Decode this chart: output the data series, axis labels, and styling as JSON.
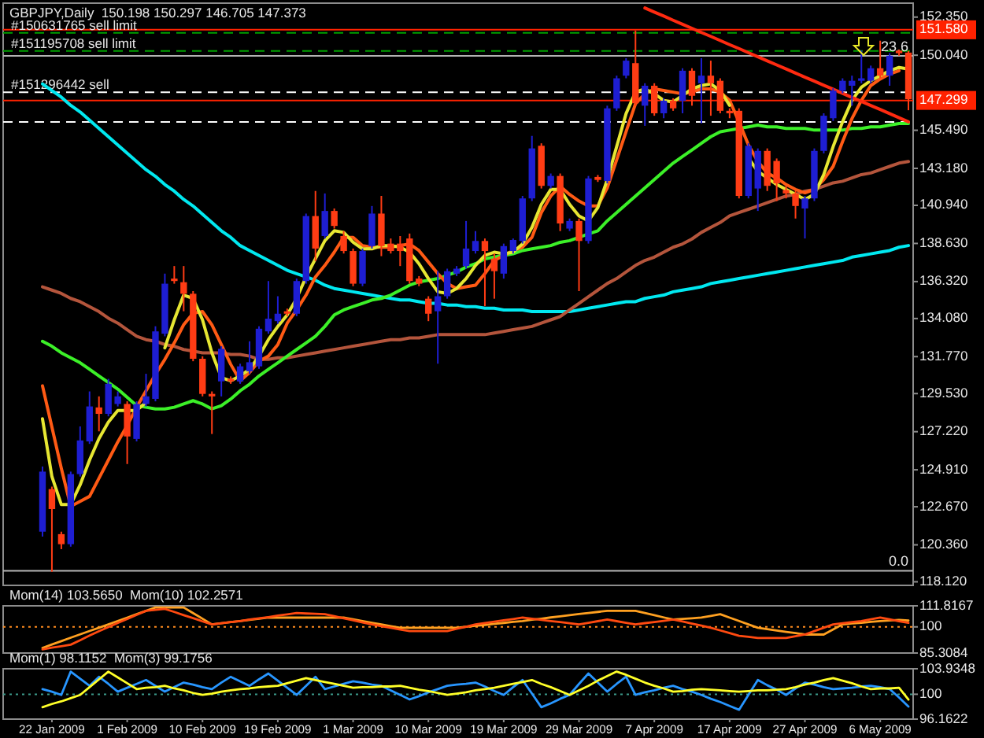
{
  "chart_data": [
    {
      "type": "candlestick",
      "title": "GBPJPY,Daily  150.198 150.297 146.705 147.373",
      "tick_labels": "y",
      "categories": [
        null,
        null,
        null,
        null,
        null,
        null,
        null,
        null,
        null,
        null,
        null,
        null,
        null,
        null,
        null,
        null,
        null,
        null,
        null,
        null,
        null,
        null,
        null,
        null,
        null,
        null,
        null,
        null,
        null,
        null,
        null,
        null,
        null,
        null,
        null,
        null,
        null,
        null,
        null,
        null,
        null,
        null,
        null,
        null,
        null,
        null,
        null,
        null,
        null,
        null,
        null,
        null,
        null,
        null,
        null,
        null,
        null,
        null,
        null,
        null,
        null,
        null,
        null,
        null,
        null,
        null,
        null,
        null,
        null,
        null,
        null,
        null,
        null,
        null,
        null,
        null,
        null,
        null,
        null,
        null,
        null,
        null,
        null,
        null,
        null,
        null,
        null,
        null,
        null,
        null,
        null,
        null,
        null
      ],
      "ohlc": [
        [
          121.16,
          125.11,
          120.86,
          124.8
        ],
        [
          123.74,
          123.89,
          118.73,
          122.53
        ],
        [
          121.01,
          121.16,
          120.1,
          120.4
        ],
        [
          120.4,
          124.8,
          120.25,
          124.65
        ],
        [
          124.65,
          127.54,
          124.5,
          126.69
        ],
        [
          126.63,
          129.66,
          126.48,
          128.75
        ],
        [
          128.69,
          129.36,
          127.24,
          128.3
        ],
        [
          128.3,
          130.42,
          128.15,
          130.12
        ],
        [
          128.9,
          129.66,
          128.75,
          129.36
        ],
        [
          128.9,
          129.06,
          125.26,
          126.93
        ],
        [
          126.78,
          129.06,
          126.63,
          128.9
        ],
        [
          128.9,
          130.73,
          128.75,
          129.36
        ],
        [
          129.21,
          133.61,
          129.06,
          133.3
        ],
        [
          133.16,
          136.8,
          133.0,
          136.19
        ],
        [
          136.5,
          137.26,
          136.19,
          136.35
        ],
        [
          136.28,
          137.26,
          134.52,
          135.58
        ],
        [
          135.58,
          135.74,
          131.49,
          131.64
        ],
        [
          131.64,
          131.79,
          129.36,
          129.51
        ],
        [
          129.51,
          129.66,
          127.08,
          129.36
        ],
        [
          130.27,
          132.4,
          129.36,
          132.24
        ],
        [
          130.42,
          130.57,
          130.12,
          130.27
        ],
        [
          130.27,
          131.34,
          130.12,
          131.18
        ],
        [
          130.88,
          132.7,
          130.73,
          131.43
        ],
        [
          131.18,
          133.61,
          131.03,
          133.46
        ],
        [
          133.3,
          136.35,
          133.16,
          134.07
        ],
        [
          133.92,
          135.43,
          133.76,
          134.37
        ],
        [
          134.52,
          134.68,
          134.22,
          134.37
        ],
        [
          134.37,
          136.5,
          134.22,
          136.35
        ],
        [
          136.35,
          140.44,
          136.19,
          140.29
        ],
        [
          140.29,
          141.81,
          137.56,
          138.32
        ],
        [
          139.08,
          141.66,
          138.93,
          140.6
        ],
        [
          140.6,
          140.75,
          139.53,
          139.69
        ],
        [
          139.08,
          139.38,
          138.02,
          138.17
        ],
        [
          138.17,
          138.32,
          136.04,
          136.19
        ],
        [
          136.19,
          138.32,
          136.04,
          138.17
        ],
        [
          138.47,
          140.9,
          138.32,
          140.44
        ],
        [
          140.44,
          141.51,
          137.86,
          138.47
        ],
        [
          138.62,
          138.93,
          138.02,
          138.17
        ],
        [
          138.62,
          139.08,
          137.26,
          138.17
        ],
        [
          138.93,
          139.23,
          136.19,
          136.35
        ],
        [
          136.5,
          136.65,
          136.04,
          136.19
        ],
        [
          135.28,
          135.43,
          133.92,
          134.37
        ],
        [
          134.52,
          136.95,
          131.34,
          135.43
        ],
        [
          135.43,
          137.1,
          135.28,
          136.95
        ],
        [
          136.8,
          137.26,
          136.65,
          137.1
        ],
        [
          137.26,
          139.99,
          137.1,
          138.32
        ],
        [
          138.17,
          139.38,
          138.02,
          138.78
        ],
        [
          138.78,
          138.93,
          134.83,
          138.17
        ],
        [
          137.71,
          138.02,
          135.28,
          136.95
        ],
        [
          136.8,
          138.62,
          136.5,
          138.47
        ],
        [
          138.17,
          138.93,
          138.02,
          138.84
        ],
        [
          138.78,
          141.51,
          138.62,
          141.36
        ],
        [
          141.36,
          145.15,
          141.2,
          144.39
        ],
        [
          144.55,
          144.7,
          141.96,
          142.12
        ],
        [
          142.12,
          142.87,
          141.96,
          142.72
        ],
        [
          142.72,
          142.87,
          139.38,
          139.84
        ],
        [
          139.53,
          140.14,
          139.38,
          139.99
        ],
        [
          139.99,
          140.14,
          135.74,
          138.78
        ],
        [
          138.78,
          142.72,
          138.62,
          142.57
        ],
        [
          142.66,
          142.78,
          142.36,
          142.48
        ],
        [
          142.42,
          146.98,
          142.27,
          146.82
        ],
        [
          146.82,
          148.8,
          146.67,
          148.64
        ],
        [
          148.8,
          149.86,
          148.64,
          149.71
        ],
        [
          149.56,
          151.53,
          146.98,
          147.13
        ],
        [
          146.98,
          148.34,
          145.76,
          148.19
        ],
        [
          148.19,
          148.34,
          146.37,
          146.52
        ],
        [
          146.52,
          147.43,
          146.22,
          147.28
        ],
        [
          147.28,
          147.43,
          146.67,
          146.82
        ],
        [
          147.28,
          149.25,
          146.52,
          149.1
        ],
        [
          149.1,
          149.25,
          146.98,
          147.58
        ],
        [
          148.34,
          149.86,
          145.91,
          148.8
        ],
        [
          148.8,
          149.71,
          146.37,
          148.34
        ],
        [
          148.49,
          148.64,
          146.52,
          146.67
        ],
        [
          146.67,
          146.82,
          146.22,
          146.52
        ],
        [
          146.67,
          146.82,
          141.36,
          141.51
        ],
        [
          141.51,
          144.7,
          141.36,
          144.55
        ],
        [
          141.96,
          144.39,
          140.6,
          144.24
        ],
        [
          144.24,
          144.39,
          141.81,
          142.12
        ],
        [
          143.63,
          143.78,
          141.2,
          142.27
        ],
        [
          141.87,
          142.12,
          141.36,
          141.66
        ],
        [
          141.66,
          141.81,
          140.14,
          140.9
        ],
        [
          140.75,
          141.51,
          138.93,
          141.36
        ],
        [
          141.36,
          144.39,
          141.2,
          144.24
        ],
        [
          144.24,
          146.52,
          144.09,
          146.37
        ],
        [
          146.22,
          148.04,
          146.06,
          147.89
        ],
        [
          147.89,
          148.64,
          147.73,
          148.49
        ],
        [
          148.19,
          148.8,
          146.98,
          148.49
        ],
        [
          148.49,
          150.32,
          148.34,
          148.64
        ],
        [
          148.49,
          149.41,
          148.34,
          149.25
        ],
        [
          149.25,
          150.92,
          148.64,
          148.8
        ],
        [
          148.8,
          150.16,
          148.19,
          150.01
        ],
        [
          150.32,
          150.38,
          150.01,
          150.16
        ],
        [
          150.198,
          150.297,
          146.705,
          147.373
        ]
      ],
      "colors": [
        "#1e1ed2",
        "#ff3c14",
        "#ff3c14",
        "#1e1ed2",
        "#1e1ed2",
        "#1e1ed2",
        "#ff3c14",
        "#1e1ed2",
        "#1e1ed2",
        "#ff3c14",
        "#1e1ed2",
        "#1e1ed2",
        "#1e1ed2",
        "#1e1ed2",
        "#ff3c14",
        "#ff3c14",
        "#ff3c14",
        "#ff3c14",
        "#ff3c14",
        "#1e1ed2",
        "#ff3c14",
        "#1e1ed2",
        "#1e1ed2",
        "#1e1ed2",
        "#1e1ed2",
        "#1e1ed2",
        "#ff3c14",
        "#1e1ed2",
        "#1e1ed2",
        "#ff3c14",
        "#1e1ed2",
        "#ff3c14",
        "#ff3c14",
        "#ff3c14",
        "#1e1ed2",
        "#1e1ed2",
        "#ff3c14",
        "#ff3c14",
        "#ff3c14",
        "#ff3c14",
        "#ff3c14",
        "#ff3c14",
        "#1e1ed2",
        "#1e1ed2",
        "#1e1ed2",
        "#1e1ed2",
        "#1e1ed2",
        "#ff3c14",
        "#ff3c14",
        "#1e1ed2",
        "#1e1ed2",
        "#1e1ed2",
        "#1e1ed2",
        "#ff3c14",
        "#1e1ed2",
        "#ff3c14",
        "#1e1ed2",
        "#ff3c14",
        "#1e1ed2",
        "#ff3c14",
        "#1e1ed2",
        "#1e1ed2",
        "#1e1ed2",
        "#ff3c14",
        "#1e1ed2",
        "#ff3c14",
        "#1e1ed2",
        "#ff3c14",
        "#1e1ed2",
        "#ff3c14",
        "#1e1ed2",
        "#ff3c14",
        "#ff3c14",
        "#ff3c14",
        "#ff3c14",
        "#1e1ed2",
        "#1e1ed2",
        "#ff3c14",
        "#ff3c14",
        "#ff3c14",
        "#ff3c14",
        "#1e1ed2",
        "#1e1ed2",
        "#1e1ed2",
        "#1e1ed2",
        "#1e1ed2",
        "#1e1ed2",
        "#1e1ed2",
        "#1e1ed2",
        "#ff3c14",
        "#1e1ed2",
        "#ff3c14",
        "#ff3c14"
      ],
      "series": [
        {
          "type": "line",
          "color": "#00e8f0",
          "values": [
            148.3,
            147.9,
            147.5,
            147.0,
            146.6,
            146.1,
            145.6,
            145.1,
            144.6,
            144.1,
            143.6,
            143.1,
            142.7,
            142.2,
            141.8,
            141.3,
            140.9,
            140.4,
            139.9,
            139.4,
            139.0,
            138.5,
            138.2,
            137.9,
            137.6,
            137.3,
            137.0,
            136.8,
            136.6,
            136.4,
            136.1,
            135.9,
            135.8,
            135.7,
            135.6,
            135.5,
            135.4,
            135.3,
            135.2,
            135.2,
            135.1,
            135.0,
            135.0,
            134.9,
            134.9,
            134.8,
            134.8,
            134.7,
            134.7,
            134.6,
            134.6,
            134.6,
            134.5,
            134.5,
            134.5,
            134.5,
            134.5,
            134.6,
            134.7,
            134.8,
            134.9,
            135.0,
            135.1,
            135.1,
            135.3,
            135.4,
            135.5,
            135.7,
            135.8,
            135.9,
            136.0,
            136.2,
            136.3,
            136.4,
            136.5,
            136.6,
            136.7,
            136.8,
            136.9,
            137.0,
            137.1,
            137.2,
            137.3,
            137.4,
            137.5,
            137.6,
            137.8,
            137.9,
            138.0,
            138.1,
            138.2,
            138.4,
            138.5
          ]
        },
        {
          "type": "line",
          "color": "#b4553c",
          "values": [
            136.0,
            135.8,
            135.6,
            135.3,
            135.1,
            134.8,
            134.5,
            134.1,
            133.8,
            133.4,
            133.0,
            132.8,
            132.7,
            132.5,
            132.4,
            132.2,
            132.1,
            132.0,
            132.0,
            132.0,
            131.9,
            131.9,
            131.8,
            131.6,
            131.6,
            131.7,
            131.7,
            131.8,
            131.9,
            132.0,
            132.1,
            132.2,
            132.3,
            132.4,
            132.5,
            132.6,
            132.7,
            132.8,
            132.8,
            132.9,
            132.9,
            133.0,
            133.1,
            133.1,
            133.1,
            133.1,
            133.1,
            133.1,
            133.2,
            133.3,
            133.4,
            133.5,
            133.6,
            133.8,
            134.0,
            134.2,
            134.6,
            135.0,
            135.4,
            135.8,
            136.2,
            136.5,
            136.9,
            137.3,
            137.6,
            137.8,
            138.1,
            138.4,
            138.6,
            138.9,
            139.3,
            139.6,
            139.9,
            140.3,
            140.5,
            140.7,
            140.9,
            141.1,
            141.3,
            141.5,
            141.6,
            141.8,
            141.9,
            142.1,
            142.3,
            142.4,
            142.6,
            142.8,
            142.9,
            143.1,
            143.3,
            143.5,
            143.6
          ]
        },
        {
          "type": "line",
          "color": "#3cf028",
          "values": [
            132.7,
            132.4,
            132.0,
            131.7,
            131.4,
            131.0,
            130.6,
            130.2,
            129.8,
            129.3,
            128.8,
            128.7,
            128.6,
            128.6,
            128.7,
            128.9,
            129.1,
            128.9,
            128.6,
            128.8,
            129.2,
            129.7,
            130.1,
            130.6,
            131.0,
            131.4,
            131.8,
            132.2,
            132.6,
            133.0,
            133.6,
            134.3,
            134.6,
            134.8,
            135.0,
            135.2,
            135.3,
            135.5,
            135.8,
            136.1,
            136.3,
            136.4,
            136.5,
            136.7,
            136.9,
            137.2,
            137.4,
            137.7,
            137.8,
            137.9,
            138.0,
            138.2,
            138.3,
            138.4,
            138.5,
            138.7,
            138.8,
            139.0,
            139.2,
            139.4,
            140.0,
            140.5,
            141.0,
            141.5,
            142.0,
            142.5,
            143.0,
            143.5,
            143.9,
            144.3,
            144.7,
            145.1,
            145.4,
            145.5,
            145.6,
            145.7,
            145.8,
            145.7,
            145.7,
            145.6,
            145.6,
            145.6,
            145.5,
            145.5,
            145.5,
            145.5,
            145.6,
            145.6,
            145.7,
            145.7,
            145.8,
            145.9,
            145.9
          ]
        },
        {
          "type": "line",
          "color": "#ff5a14",
          "values": [
            130.0,
            127.5,
            125.0,
            122.7,
            123.0,
            123.3,
            124.4,
            125.5,
            126.6,
            127.6,
            128.7,
            129.7,
            130.7,
            131.6,
            132.6,
            133.7,
            134.4,
            134.5,
            133.7,
            132.5,
            131.3,
            130.3,
            130.8,
            131.5,
            131.8,
            132.5,
            133.8,
            134.6,
            135.5,
            136.6,
            137.3,
            138.1,
            139.0,
            139.0,
            138.5,
            138.4,
            138.4,
            138.4,
            138.5,
            138.6,
            138.2,
            137.5,
            136.8,
            136.2,
            135.9,
            136.0,
            136.1,
            136.8,
            137.6,
            137.9,
            138.2,
            138.4,
            139.0,
            140.5,
            141.5,
            142.1,
            141.6,
            141.2,
            140.9,
            140.9,
            142.0,
            143.7,
            145.4,
            147.1,
            147.7,
            148.0,
            147.9,
            147.8,
            147.7,
            147.8,
            148.0,
            148.0,
            147.8,
            147.3,
            146.0,
            144.6,
            143.6,
            142.9,
            142.6,
            142.2,
            141.9,
            141.7,
            141.9,
            142.5,
            143.3,
            144.8,
            146.2,
            147.3,
            148.2,
            148.6,
            148.9,
            149.1,
            null
          ]
        },
        {
          "type": "line",
          "color": "#e6e632",
          "values": [
            128.0,
            124.5,
            122.8,
            122.8,
            124.0,
            125.5,
            126.8,
            127.8,
            128.5,
            128.5,
            128.5,
            129.0,
            null,
            132.3,
            134.0,
            135.5,
            135.3,
            134.0,
            132.0,
            130.5,
            130.3,
            130.6,
            131.0,
            131.8,
            132.8,
            133.6,
            134.3,
            135.3,
            136.6,
            137.7,
            138.8,
            139.4,
            139.3,
            138.7,
            138.3,
            138.3,
            138.5,
            138.5,
            138.4,
            138.1,
            137.4,
            136.5,
            135.7,
            135.6,
            135.9,
            136.5,
            137.3,
            137.9,
            138.1,
            138.0,
            138.1,
            138.6,
            139.6,
            141.0,
            141.9,
            141.9,
            141.0,
            140.3,
            140.0,
            140.8,
            142.5,
            144.5,
            146.5,
            147.8,
            148.0,
            147.7,
            147.3,
            147.2,
            147.6,
            148.0,
            148.2,
            148.3,
            147.9,
            147.0,
            null,
            143.8,
            143.0,
            142.6,
            142.2,
            141.9,
            141.6,
            141.3,
            141.6,
            142.8,
            144.5,
            146.0,
            147.3,
            148.1,
            148.5,
            148.8,
            149.1,
            149.3,
            149.2
          ]
        },
        {
          "type": "line",
          "color": "#ff2a10",
          "values": [
            null,
            null,
            null,
            null,
            null,
            null,
            null,
            null,
            null,
            null,
            null,
            null,
            null,
            null,
            null,
            null,
            null,
            null,
            null,
            null,
            null,
            null,
            null,
            null,
            null,
            null,
            null,
            null,
            null,
            null,
            null,
            null,
            null,
            null,
            null,
            null,
            null,
            null,
            null,
            null,
            null,
            null,
            null,
            null,
            null,
            null,
            null,
            null,
            null,
            null,
            null,
            null,
            null,
            null,
            null,
            null,
            null,
            null,
            null,
            null,
            null,
            null,
            null,
            null,
            152.9,
            152.65,
            152.41,
            152.16,
            151.91,
            151.67,
            151.42,
            151.18,
            150.93,
            150.68,
            150.44,
            150.19,
            149.95,
            149.7,
            149.45,
            149.21,
            148.96,
            148.71,
            148.47,
            148.22,
            147.98,
            147.73,
            147.48,
            147.24,
            146.99,
            146.75,
            146.5,
            146.25,
            146.0
          ]
        }
      ],
      "ylim": [
        118.0,
        153.1
      ],
      "yticks": [
        {
          "value": 152.35,
          "label": "152.350"
        },
        {
          "value": 150.04,
          "label": "150.040"
        },
        {
          "value": 145.49,
          "label": "145.490"
        },
        {
          "value": 143.18,
          "label": "143.180"
        },
        {
          "value": 140.94,
          "label": "140.940"
        },
        {
          "value": 138.63,
          "label": "138.630"
        },
        {
          "value": 136.32,
          "label": "136.320"
        },
        {
          "value": 134.08,
          "label": "134.080"
        },
        {
          "value": 131.77,
          "label": "131.770"
        },
        {
          "value": 129.53,
          "label": "129.530"
        },
        {
          "value": 127.22,
          "label": "127.220"
        },
        {
          "value": 124.91,
          "label": "124.910"
        },
        {
          "value": 122.67,
          "label": "122.670"
        },
        {
          "value": 120.36,
          "label": "120.360"
        },
        {
          "value": 118.12,
          "label": "118.120"
        }
      ],
      "ref_lines": [
        {
          "axis": "y",
          "value": 151.58,
          "label": "151.580",
          "color": "#ff2200",
          "line_style": "solid"
        },
        {
          "axis": "y",
          "value": 151.4,
          "label": "#150631765 sell limit",
          "color": "#00a000",
          "line_style": "dashed"
        },
        {
          "axis": "y",
          "value": 150.3,
          "label": "#151195708 sell limit",
          "color": "#00a000",
          "line_style": "dashed"
        },
        {
          "axis": "y",
          "value": 150.0,
          "color": "#b4b4b4",
          "line_style": "solid"
        },
        {
          "axis": "y",
          "value": 147.8,
          "label": "#151296442 sell",
          "color": "#ffffff",
          "line_style": "dashed"
        },
        {
          "axis": "y",
          "value": 147.299,
          "label": "147.299",
          "color": "#ff2200",
          "line_style": "solid"
        },
        {
          "axis": "y",
          "value": 146.0,
          "color": "#ffffff",
          "line_style": "dashed"
        },
        {
          "axis": "y",
          "value": 118.79,
          "color": "#b4b4b4",
          "line_style": "solid"
        }
      ],
      "annotations": [
        {
          "text": "23.6",
          "y": 150.0
        },
        {
          "text": "0.0",
          "y": 118.79
        }
      ]
    },
    {
      "type": "line",
      "title": "Mom(14) 103.5650  Mom(10) 102.2571",
      "tick_labels": "y",
      "categories": [
        null,
        null,
        null,
        null,
        null,
        null,
        null,
        null,
        null,
        null,
        null,
        null,
        null,
        null,
        null,
        null,
        null,
        null,
        null,
        null,
        null,
        null,
        null,
        null,
        null,
        null,
        null,
        null,
        null,
        null,
        null,
        null,
        null,
        null,
        null,
        null,
        null,
        null,
        null,
        null,
        null,
        null,
        null,
        null,
        null,
        null,
        null,
        null,
        null,
        null,
        null,
        null,
        null,
        null,
        null,
        null,
        null,
        null,
        null,
        null,
        null,
        null,
        null,
        null,
        null,
        null,
        null,
        null,
        null,
        null,
        null,
        null,
        null,
        null,
        null,
        null,
        null,
        null,
        null,
        null,
        null,
        null,
        null,
        null,
        null,
        null,
        null,
        null,
        null,
        null,
        null,
        null,
        null
      ],
      "series": [
        {
          "color": "#ffa020",
          "values": [
            88.2,
            90.1,
            92.0,
            93.9,
            95.8,
            97.7,
            99.5,
            101.4,
            103.3,
            105.2,
            107.1,
            109.0,
            110.9,
            110.9,
            110.9,
            110.9,
            107.7,
            104.6,
            101.4,
            102.0,
            102.7,
            103.3,
            103.9,
            104.6,
            105.2,
            105.2,
            105.2,
            105.2,
            105.2,
            105.2,
            105.2,
            105.2,
            105.2,
            104.3,
            103.3,
            102.3,
            101.4,
            100.4,
            99.5,
            99.5,
            99.5,
            99.5,
            99.5,
            99.5,
            99.5,
            100.1,
            100.6,
            101.1,
            101.7,
            102.2,
            102.8,
            103.3,
            104.0,
            104.6,
            105.3,
            105.9,
            106.6,
            107.2,
            107.8,
            108.4,
            109.0,
            109.0,
            109.0,
            109.0,
            107.8,
            106.6,
            105.3,
            104.1,
            104.5,
            104.8,
            105.2,
            106.1,
            107.1,
            105.2,
            103.3,
            101.4,
            99.5,
            98.7,
            98.0,
            97.2,
            96.5,
            95.7,
            95.7,
            95.7,
            98.6,
            101.4,
            101.9,
            102.3,
            102.8,
            103.3,
            103.6,
            103.9,
            103.565
          ]
        },
        {
          "color": "#ff4a10",
          "values": [
            87.4,
            88.3,
            89.1,
            90.0,
            92.5,
            95.1,
            97.6,
            99.9,
            102.2,
            104.4,
            106.7,
            109.0,
            109.6,
            110.1,
            108.4,
            106.6,
            104.9,
            103.1,
            101.4,
            102.0,
            102.7,
            103.3,
            104.1,
            104.8,
            105.5,
            106.3,
            107.0,
            107.8,
            107.5,
            107.3,
            107.1,
            106.0,
            104.8,
            103.7,
            102.5,
            101.4,
            100.4,
            99.5,
            98.5,
            97.6,
            97.6,
            97.6,
            97.6,
            97.6,
            98.9,
            100.1,
            101.4,
            102.2,
            102.9,
            103.7,
            104.4,
            105.2,
            104.6,
            103.9,
            103.3,
            102.7,
            102.0,
            101.4,
            102.3,
            103.2,
            104.1,
            103.2,
            102.3,
            101.4,
            102.1,
            102.7,
            103.4,
            104.1,
            103.0,
            101.8,
            100.7,
            99.5,
            98.0,
            96.5,
            95.0,
            94.4,
            93.8,
            93.8,
            93.8,
            93.8,
            94.8,
            95.7,
            97.6,
            99.5,
            101.4,
            102.0,
            102.7,
            103.3,
            104.3,
            105.2,
            104.2,
            103.2,
            102.2571
          ]
        }
      ],
      "ylim": [
        85.3084,
        111.8167
      ],
      "yticks": [
        111.8167,
        100,
        85.3084
      ],
      "ref_lines": [
        {
          "axis": "y",
          "value": 100,
          "color": "#ff8c1e",
          "line_style": "dotted"
        }
      ]
    },
    {
      "type": "line",
      "title": "Mom(1) 98.1152  Mom(3) 99.1756",
      "categories": [
        null,
        "22 Jan 2009",
        null,
        null,
        null,
        null,
        null,
        null,
        null,
        "1 Feb 2009",
        null,
        null,
        null,
        null,
        null,
        null,
        null,
        "10 Feb 2009",
        null,
        null,
        null,
        null,
        null,
        null,
        null,
        "19 Feb 2009",
        null,
        null,
        null,
        null,
        null,
        null,
        null,
        "1 Mar 2009",
        null,
        null,
        null,
        null,
        null,
        null,
        null,
        "10 Mar 2009",
        null,
        null,
        null,
        null,
        null,
        null,
        null,
        "19 Mar 2009",
        null,
        null,
        null,
        null,
        null,
        null,
        null,
        "29 Mar 2009",
        null,
        null,
        null,
        null,
        null,
        null,
        null,
        "7 Apr 2009",
        null,
        null,
        null,
        null,
        null,
        null,
        null,
        "17 Apr 2009",
        null,
        null,
        null,
        null,
        null,
        null,
        null,
        "27 Apr 2009",
        null,
        null,
        null,
        null,
        null,
        null,
        null,
        "6 May 2009",
        null,
        null,
        null
      ],
      "series": [
        {
          "color": "#2896ff",
          "values": [
            100.8,
            100.4,
            99.9,
            103.5,
            102.4,
            101.3,
            102.7,
            101.6,
            100.4,
            101.0,
            101.6,
            102.2,
            101.3,
            100.4,
            101.1,
            101.8,
            101.5,
            101.1,
            100.8,
            101.8,
            102.7,
            102.0,
            101.3,
            102.3,
            103.2,
            102.1,
            101.0,
            99.9,
            101.3,
            102.7,
            100.8,
            101.2,
            101.6,
            102.0,
            101.8,
            101.5,
            101.3,
            100.6,
            99.9,
            99.2,
            99.7,
            100.3,
            100.8,
            101.3,
            101.5,
            101.6,
            101.8,
            101.2,
            100.5,
            99.9,
            101.1,
            102.2,
            100.1,
            98.0,
            98.6,
            99.3,
            99.9,
            101.6,
            103.2,
            101.8,
            100.4,
            101.6,
            102.7,
            99.9,
            100.3,
            100.6,
            101.0,
            101.3,
            100.8,
            100.4,
            99.9,
            99.3,
            98.8,
            98.2,
            97.6,
            99.9,
            102.2,
            101.4,
            100.7,
            99.9,
            100.9,
            101.8,
            101.5,
            101.1,
            100.8,
            100.9,
            101.0,
            101.2,
            101.3,
            101.1,
            100.8,
            99.5,
            98.1152
          ]
        },
        {
          "color": "#ffff28",
          "values": [
            98.0,
            98.5,
            98.9,
            99.4,
            99.9,
            101.1,
            102.3,
            103.5,
            102.6,
            101.7,
            100.8,
            101.0,
            101.1,
            101.3,
            100.9,
            100.6,
            100.2,
            99.9,
            100.1,
            100.4,
            100.6,
            100.8,
            100.9,
            101.1,
            101.2,
            101.3,
            101.7,
            102.1,
            102.5,
            102.2,
            101.9,
            101.6,
            101.3,
            101.0,
            101.1,
            101.1,
            101.2,
            101.2,
            101.3,
            101.0,
            100.7,
            100.5,
            100.2,
            99.9,
            100.1,
            100.3,
            100.6,
            100.8,
            101.0,
            101.3,
            101.6,
            101.9,
            102.2,
            101.6,
            101.1,
            100.5,
            99.9,
            100.6,
            101.3,
            102.1,
            102.8,
            103.5,
            103.0,
            102.4,
            101.8,
            101.3,
            100.9,
            100.4,
            100.5,
            100.7,
            100.8,
            100.7,
            100.6,
            100.5,
            100.4,
            100.5,
            100.6,
            100.6,
            100.7,
            100.8,
            101.1,
            101.5,
            101.8,
            102.2,
            102.5,
            102.1,
            101.7,
            101.2,
            100.8,
            100.9,
            100.9,
            101.0,
            99.1756
          ]
        }
      ],
      "ylim": [
        96.1622,
        103.9348
      ],
      "yticks": [
        103.9348,
        100,
        96.1622
      ],
      "ref_lines": [
        {
          "axis": "y",
          "value": 100,
          "color": "#3c9b8c",
          "line_style": "dotted"
        }
      ]
    }
  ]
}
